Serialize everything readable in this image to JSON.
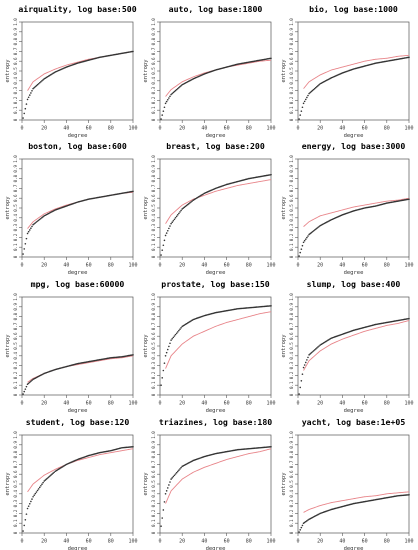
{
  "figure": {
    "common": {
      "xlabel": "degree",
      "ylabel": "entropy",
      "xlim": [
        0,
        100
      ],
      "ylim": [
        0,
        1.0
      ],
      "xticks": [
        "0",
        "20",
        "40",
        "60",
        "80",
        "100"
      ],
      "yticks": [
        "0",
        "0.1",
        "0.2",
        "0.3",
        "0.4",
        "0.5",
        "0.6",
        "0.7",
        "0.8",
        "0.9",
        "1.0"
      ],
      "point_color": "#333333",
      "curve_color": "#e8858a"
    }
  },
  "chart_data": [
    {
      "type": "scatter",
      "title": "airquality, log base:500",
      "xlabel": "degree",
      "ylabel": "entropy",
      "xlim": [
        0,
        100
      ],
      "ylim": [
        0,
        1.0
      ],
      "series": [
        {
          "marker": "points",
          "x": [
            1,
            5,
            10,
            20,
            30,
            40,
            50,
            60,
            70,
            80,
            90,
            100
          ],
          "y": [
            0.02,
            0.21,
            0.32,
            0.42,
            0.49,
            0.54,
            0.58,
            0.61,
            0.64,
            0.66,
            0.68,
            0.7
          ]
        },
        {
          "marker": "line",
          "x": [
            5,
            10,
            20,
            30,
            40,
            50,
            60,
            70,
            80,
            90,
            100
          ],
          "y": [
            0.3,
            0.39,
            0.47,
            0.52,
            0.56,
            0.59,
            0.62,
            0.64,
            0.66,
            0.68,
            0.7
          ]
        }
      ]
    },
    {
      "type": "scatter",
      "title": "auto, log base:1800",
      "xlabel": "degree",
      "ylabel": "entropy",
      "xlim": [
        0,
        100
      ],
      "ylim": [
        0,
        1.0
      ],
      "series": [
        {
          "marker": "points",
          "x": [
            1,
            5,
            10,
            20,
            30,
            40,
            50,
            60,
            70,
            80,
            90,
            100
          ],
          "y": [
            0.01,
            0.17,
            0.26,
            0.36,
            0.42,
            0.47,
            0.51,
            0.54,
            0.57,
            0.59,
            0.61,
            0.63
          ]
        },
        {
          "marker": "line",
          "x": [
            5,
            10,
            20,
            30,
            40,
            50,
            60,
            70,
            80,
            90,
            100
          ],
          "y": [
            0.24,
            0.31,
            0.39,
            0.44,
            0.48,
            0.51,
            0.54,
            0.56,
            0.58,
            0.6,
            0.61
          ]
        }
      ]
    },
    {
      "type": "scatter",
      "title": "bio, log base:1000",
      "xlabel": "degree",
      "ylabel": "entropy",
      "xlim": [
        0,
        100
      ],
      "ylim": [
        0,
        1.0
      ],
      "series": [
        {
          "marker": "points",
          "x": [
            1,
            5,
            10,
            20,
            30,
            40,
            50,
            60,
            70,
            80,
            90,
            100
          ],
          "y": [
            0.01,
            0.17,
            0.27,
            0.37,
            0.43,
            0.48,
            0.52,
            0.55,
            0.58,
            0.6,
            0.62,
            0.64
          ]
        },
        {
          "marker": "line",
          "x": [
            5,
            10,
            20,
            30,
            40,
            50,
            60,
            70,
            80,
            90,
            100
          ],
          "y": [
            0.32,
            0.39,
            0.46,
            0.51,
            0.54,
            0.57,
            0.6,
            0.62,
            0.63,
            0.65,
            0.66
          ]
        }
      ]
    },
    {
      "type": "scatter",
      "title": "boston, log base:600",
      "xlabel": "degree",
      "ylabel": "entropy",
      "xlim": [
        0,
        100
      ],
      "ylim": [
        0,
        1.0
      ],
      "series": [
        {
          "marker": "points",
          "x": [
            1,
            5,
            10,
            20,
            30,
            40,
            50,
            60,
            70,
            80,
            90,
            100
          ],
          "y": [
            0.03,
            0.24,
            0.33,
            0.42,
            0.48,
            0.52,
            0.56,
            0.59,
            0.61,
            0.63,
            0.65,
            0.67
          ]
        },
        {
          "marker": "line",
          "x": [
            5,
            10,
            20,
            30,
            40,
            50,
            60,
            70,
            80,
            90,
            100
          ],
          "y": [
            0.29,
            0.36,
            0.44,
            0.49,
            0.53,
            0.56,
            0.59,
            0.61,
            0.63,
            0.65,
            0.66
          ]
        }
      ]
    },
    {
      "type": "scatter",
      "title": "breast, log base:200",
      "xlabel": "degree",
      "ylabel": "entropy",
      "xlim": [
        0,
        100
      ],
      "ylim": [
        0,
        1.0
      ],
      "series": [
        {
          "marker": "points",
          "x": [
            1,
            5,
            10,
            20,
            30,
            40,
            50,
            60,
            70,
            80,
            90,
            100
          ],
          "y": [
            0.02,
            0.22,
            0.34,
            0.49,
            0.58,
            0.65,
            0.7,
            0.74,
            0.77,
            0.8,
            0.82,
            0.84
          ]
        },
        {
          "marker": "line",
          "x": [
            5,
            10,
            20,
            30,
            40,
            50,
            60,
            70,
            80,
            90,
            100
          ],
          "y": [
            0.34,
            0.43,
            0.53,
            0.59,
            0.63,
            0.67,
            0.7,
            0.73,
            0.75,
            0.77,
            0.79
          ]
        }
      ]
    },
    {
      "type": "scatter",
      "title": "energy, log base:3000",
      "xlabel": "degree",
      "ylabel": "entropy",
      "xlim": [
        0,
        100
      ],
      "ylim": [
        0,
        1.0
      ],
      "series": [
        {
          "marker": "points",
          "x": [
            1,
            5,
            10,
            20,
            30,
            40,
            50,
            60,
            70,
            80,
            90,
            100
          ],
          "y": [
            0.01,
            0.15,
            0.23,
            0.32,
            0.38,
            0.43,
            0.47,
            0.5,
            0.52,
            0.55,
            0.57,
            0.59
          ]
        },
        {
          "marker": "line",
          "x": [
            5,
            10,
            20,
            30,
            40,
            50,
            60,
            70,
            80,
            90,
            100
          ],
          "y": [
            0.31,
            0.36,
            0.42,
            0.45,
            0.48,
            0.51,
            0.53,
            0.55,
            0.57,
            0.58,
            0.6
          ]
        }
      ]
    },
    {
      "type": "scatter",
      "title": "mpg, log base:60000",
      "xlabel": "degree",
      "ylabel": "entropy",
      "xlim": [
        0,
        100
      ],
      "ylim": [
        0,
        1.0
      ],
      "series": [
        {
          "marker": "points",
          "x": [
            1,
            5,
            10,
            20,
            30,
            40,
            50,
            60,
            70,
            80,
            90,
            100
          ],
          "y": [
            0.01,
            0.11,
            0.16,
            0.22,
            0.26,
            0.29,
            0.32,
            0.34,
            0.36,
            0.38,
            0.39,
            0.41
          ]
        },
        {
          "marker": "line",
          "x": [
            5,
            10,
            20,
            30,
            40,
            50,
            60,
            70,
            80,
            90,
            100
          ],
          "y": [
            0.13,
            0.17,
            0.22,
            0.26,
            0.29,
            0.31,
            0.33,
            0.35,
            0.37,
            0.38,
            0.4
          ]
        }
      ]
    },
    {
      "type": "scatter",
      "title": "prostate, log base:150",
      "xlabel": "degree",
      "ylabel": "entropy",
      "xlim": [
        0,
        100
      ],
      "ylim": [
        0,
        1.0
      ],
      "series": [
        {
          "marker": "points",
          "x": [
            1,
            5,
            10,
            20,
            30,
            40,
            50,
            60,
            70,
            80,
            90,
            100
          ],
          "y": [
            0.1,
            0.4,
            0.56,
            0.7,
            0.77,
            0.81,
            0.84,
            0.86,
            0.88,
            0.89,
            0.9,
            0.91
          ]
        },
        {
          "marker": "line",
          "x": [
            5,
            10,
            20,
            30,
            40,
            50,
            60,
            70,
            80,
            90,
            100
          ],
          "y": [
            0.27,
            0.4,
            0.52,
            0.6,
            0.65,
            0.7,
            0.74,
            0.77,
            0.8,
            0.83,
            0.85
          ]
        }
      ]
    },
    {
      "type": "scatter",
      "title": "slump, log base:400",
      "xlabel": "degree",
      "ylabel": "entropy",
      "xlim": [
        0,
        100
      ],
      "ylim": [
        0,
        1.0
      ],
      "series": [
        {
          "marker": "points",
          "x": [
            1,
            5,
            10,
            20,
            30,
            40,
            50,
            60,
            70,
            80,
            90,
            100
          ],
          "y": [
            0.01,
            0.28,
            0.41,
            0.51,
            0.58,
            0.62,
            0.66,
            0.69,
            0.72,
            0.74,
            0.76,
            0.78
          ]
        },
        {
          "marker": "line",
          "x": [
            5,
            10,
            20,
            30,
            40,
            50,
            60,
            70,
            80,
            90,
            100
          ],
          "y": [
            0.25,
            0.35,
            0.45,
            0.52,
            0.57,
            0.61,
            0.65,
            0.68,
            0.71,
            0.73,
            0.76
          ]
        }
      ]
    },
    {
      "type": "scatter",
      "title": "student, log base:120",
      "xlabel": "degree",
      "ylabel": "entropy",
      "xlim": [
        0,
        100
      ],
      "ylim": [
        0,
        1.0
      ],
      "series": [
        {
          "marker": "points",
          "x": [
            1,
            5,
            10,
            20,
            30,
            40,
            50,
            60,
            70,
            80,
            90,
            100
          ],
          "y": [
            0.02,
            0.25,
            0.37,
            0.53,
            0.63,
            0.7,
            0.75,
            0.79,
            0.82,
            0.84,
            0.87,
            0.88
          ]
        },
        {
          "marker": "line",
          "x": [
            5,
            10,
            20,
            30,
            40,
            50,
            60,
            70,
            80,
            90,
            100
          ],
          "y": [
            0.42,
            0.5,
            0.59,
            0.65,
            0.7,
            0.74,
            0.77,
            0.8,
            0.82,
            0.84,
            0.86
          ]
        }
      ]
    },
    {
      "type": "scatter",
      "title": "triazines, log base:180",
      "xlabel": "degree",
      "ylabel": "entropy",
      "xlim": [
        0,
        100
      ],
      "ylim": [
        0,
        1.0
      ],
      "series": [
        {
          "marker": "points",
          "x": [
            1,
            5,
            10,
            20,
            30,
            40,
            50,
            60,
            70,
            80,
            90,
            100
          ],
          "y": [
            0.07,
            0.4,
            0.55,
            0.68,
            0.74,
            0.78,
            0.81,
            0.83,
            0.85,
            0.86,
            0.87,
            0.88
          ]
        },
        {
          "marker": "line",
          "x": [
            5,
            10,
            20,
            30,
            40,
            50,
            60,
            70,
            80,
            90,
            100
          ],
          "y": [
            0.3,
            0.43,
            0.55,
            0.62,
            0.67,
            0.71,
            0.75,
            0.78,
            0.81,
            0.83,
            0.86
          ]
        }
      ]
    },
    {
      "type": "scatter",
      "title": "yacht, log base:1e+05",
      "xlabel": "degree",
      "ylabel": "entropy",
      "xlim": [
        0,
        100
      ],
      "ylim": [
        0,
        1.0
      ],
      "series": [
        {
          "marker": "points",
          "x": [
            1,
            5,
            10,
            20,
            30,
            40,
            50,
            60,
            70,
            80,
            90,
            100
          ],
          "y": [
            0.01,
            0.1,
            0.14,
            0.2,
            0.24,
            0.27,
            0.3,
            0.32,
            0.34,
            0.36,
            0.38,
            0.39
          ]
        },
        {
          "marker": "line",
          "x": [
            5,
            10,
            20,
            30,
            40,
            50,
            60,
            70,
            80,
            90,
            100
          ],
          "y": [
            0.21,
            0.24,
            0.28,
            0.31,
            0.33,
            0.35,
            0.37,
            0.38,
            0.4,
            0.41,
            0.42
          ]
        }
      ]
    }
  ]
}
